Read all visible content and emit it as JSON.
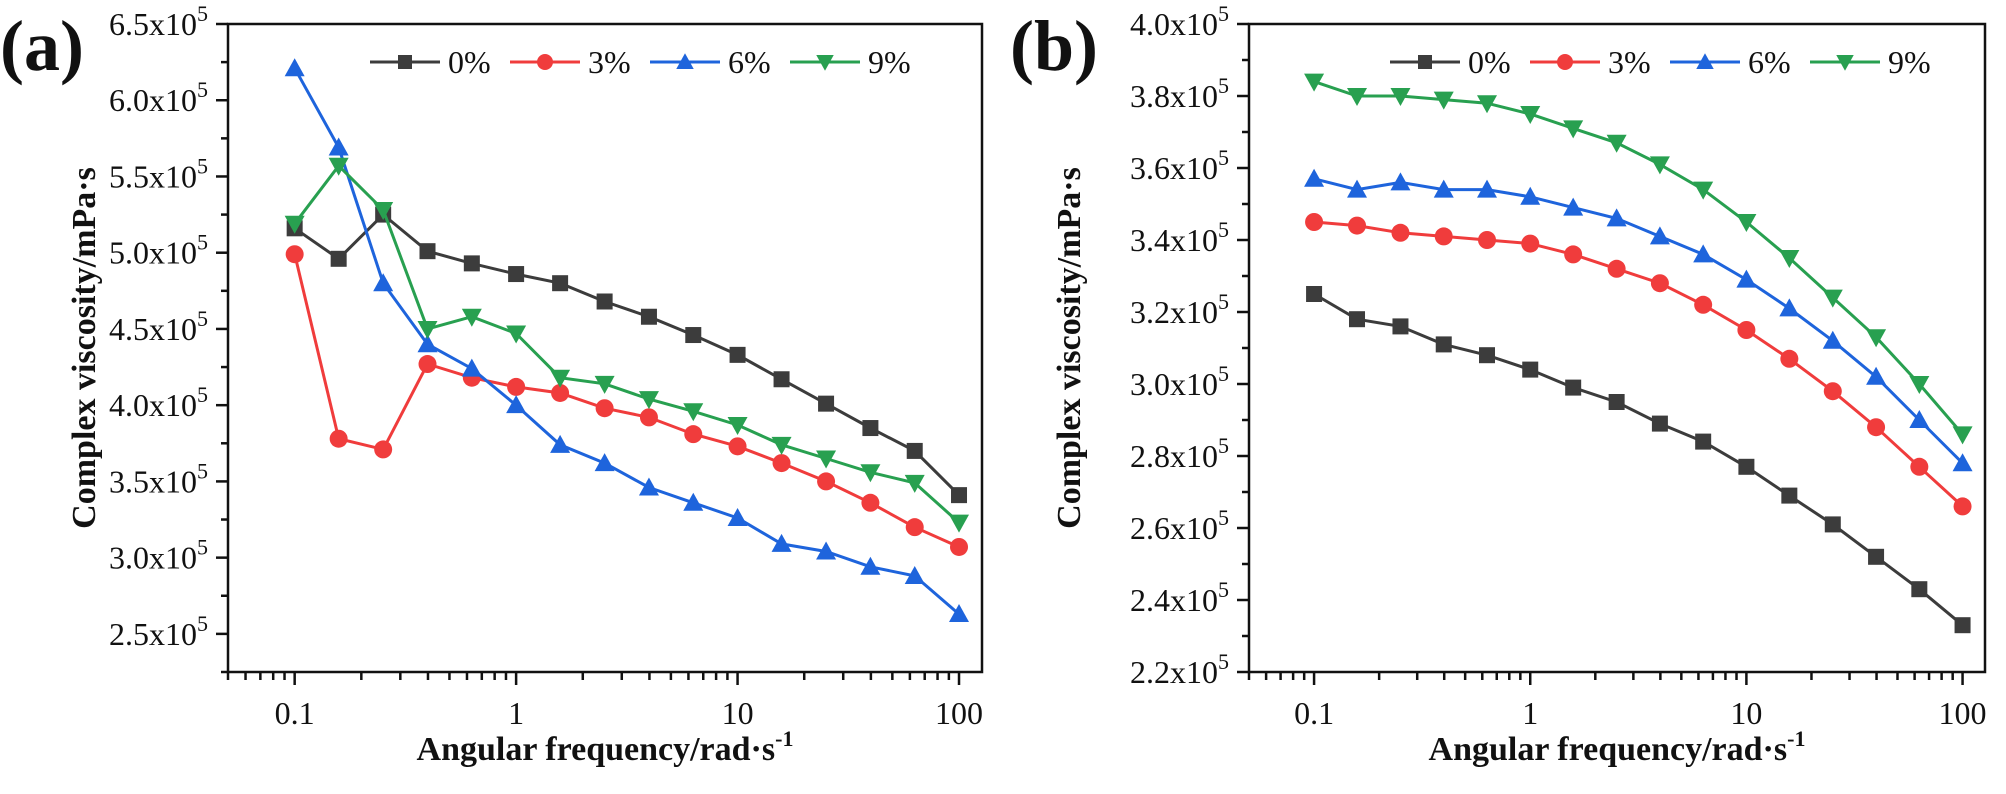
{
  "chart_data": [
    {
      "type": "line",
      "panel_label": "(a)",
      "title": "",
      "xlabel": "Angular frequency/rad·s",
      "xlabel_sup": "-1",
      "ylabel": "Complex viscosity/mPa·s",
      "xscale": "log",
      "xlim": [
        0.05,
        127
      ],
      "ylim": [
        225000.0,
        650000.0
      ],
      "x_ticks": [
        0.1,
        1,
        10,
        100
      ],
      "x_tick_labels": [
        "0.1",
        "1",
        "10",
        "100"
      ],
      "y_ticks": [
        250000.0,
        300000.0,
        350000.0,
        400000.0,
        450000.0,
        500000.0,
        550000.0,
        600000.0,
        650000.0
      ],
      "y_tick_labels": [
        "2.5x10^5",
        "3.0x10^5",
        "3.5x10^5",
        "4.0x10^5",
        "4.5x10^5",
        "5.0x10^5",
        "5.5x10^5",
        "6.0x10^5",
        "6.5x10^5"
      ],
      "grid": false,
      "legend_position": "top",
      "x": [
        0.1,
        0.158,
        0.251,
        0.398,
        0.631,
        1,
        1.58,
        2.51,
        3.98,
        6.31,
        10,
        15.8,
        25.1,
        39.8,
        63.1,
        100
      ],
      "series": [
        {
          "name": "0%",
          "color": "#3c3c3c",
          "marker": "square",
          "values": [
            516000.0,
            496000.0,
            525000.0,
            501000.0,
            493000.0,
            486000.0,
            480000.0,
            468000.0,
            458000.0,
            446000.0,
            433000.0,
            417000.0,
            401000.0,
            385000.0,
            370000.0,
            341000.0
          ]
        },
        {
          "name": "3%",
          "color": "#f03c3c",
          "marker": "circle",
          "values": [
            499000.0,
            378000.0,
            371000.0,
            427000.0,
            418000.0,
            412000.0,
            408000.0,
            398000.0,
            392000.0,
            381000.0,
            373000.0,
            362000.0,
            350000.0,
            336000.0,
            320000.0,
            307000.0
          ]
        },
        {
          "name": "6%",
          "color": "#1e64dc",
          "marker": "triangle-up",
          "values": [
            621000.0,
            569000.0,
            480000.0,
            440000.0,
            424000.0,
            400000.0,
            374000.0,
            362000.0,
            346000.0,
            336000.0,
            326000.0,
            309000.0,
            304000.0,
            294000.0,
            288000.0,
            263000.0
          ]
        },
        {
          "name": "9%",
          "color": "#28a050",
          "marker": "triangle-down",
          "values": [
            519000.0,
            557000.0,
            528000.0,
            450000.0,
            458000.0,
            447000.0,
            418000.0,
            414000.0,
            404000.0,
            396000.0,
            387000.0,
            374000.0,
            365000.0,
            356000.0,
            349000.0,
            323000.0
          ]
        }
      ]
    },
    {
      "type": "line",
      "panel_label": "(b)",
      "title": "",
      "xlabel": "Angular frequency/rad·s",
      "xlabel_sup": "-1",
      "ylabel": "Complex viscosity/mPa·s",
      "xscale": "log",
      "xlim": [
        0.05,
        127
      ],
      "ylim": [
        220000.0,
        400000.0
      ],
      "x_ticks": [
        0.1,
        1,
        10,
        100
      ],
      "x_tick_labels": [
        "0.1",
        "1",
        "10",
        "100"
      ],
      "y_ticks": [
        220000.0,
        240000.0,
        260000.0,
        280000.0,
        300000.0,
        320000.0,
        340000.0,
        360000.0,
        380000.0,
        400000.0
      ],
      "y_tick_labels": [
        "2.2x10^5",
        "2.4x10^5",
        "2.6x10^5",
        "2.8x10^5",
        "3.0x10^5",
        "3.2x10^5",
        "3.4x10^5",
        "3.6x10^5",
        "3.8x10^5",
        "4.0x10^5"
      ],
      "grid": false,
      "legend_position": "top",
      "x": [
        0.1,
        0.158,
        0.251,
        0.398,
        0.631,
        1,
        1.58,
        2.51,
        3.98,
        6.31,
        10,
        15.8,
        25.1,
        39.8,
        63.1,
        100
      ],
      "series": [
        {
          "name": "0%",
          "color": "#3c3c3c",
          "marker": "square",
          "values": [
            325000.0,
            318000.0,
            316000.0,
            311000.0,
            308000.0,
            304000.0,
            299000.0,
            295000.0,
            289000.0,
            284000.0,
            277000.0,
            269000.0,
            261000.0,
            252000.0,
            243000.0,
            233000.0
          ]
        },
        {
          "name": "3%",
          "color": "#f03c3c",
          "marker": "circle",
          "values": [
            345000.0,
            344000.0,
            342000.0,
            341000.0,
            340000.0,
            339000.0,
            336000.0,
            332000.0,
            328000.0,
            322000.0,
            315000.0,
            307000.0,
            298000.0,
            288000.0,
            277000.0,
            266000.0
          ]
        },
        {
          "name": "6%",
          "color": "#1e64dc",
          "marker": "triangle-up",
          "values": [
            357000.0,
            354000.0,
            356000.0,
            354000.0,
            354000.0,
            352000.0,
            349000.0,
            346000.0,
            341000.0,
            336000.0,
            329000.0,
            321000.0,
            312000.0,
            302000.0,
            290000.0,
            278000.0
          ]
        },
        {
          "name": "9%",
          "color": "#28a050",
          "marker": "triangle-down",
          "values": [
            384000.0,
            380000.0,
            380000.0,
            379000.0,
            378000.0,
            375000.0,
            371000.0,
            367000.0,
            361000.0,
            354000.0,
            345000.0,
            335000.0,
            324000.0,
            313000.0,
            300000.0,
            286000.0
          ]
        }
      ]
    }
  ]
}
